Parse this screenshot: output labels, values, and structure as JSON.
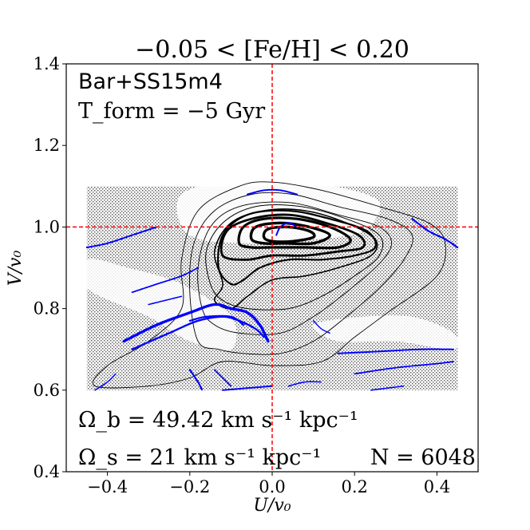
{
  "chart_data": {
    "type": "scatter",
    "title": "−0.05 < [Fe/H] < 0.20",
    "xlabel": "U/v₀",
    "ylabel": "V/v₀",
    "xlim": [
      -0.5,
      0.5
    ],
    "ylim": [
      0.4,
      1.4
    ],
    "xticks": [
      -0.4,
      -0.2,
      0.0,
      0.2,
      0.4
    ],
    "xtick_labels": [
      "−0.4",
      "−0.2",
      "0.0",
      "0.2",
      "0.4"
    ],
    "yticks": [
      0.4,
      0.6,
      0.8,
      1.0,
      1.2,
      1.4
    ],
    "ytick_labels": [
      "0.4",
      "0.6",
      "0.8",
      "1.0",
      "1.2",
      "1.4"
    ],
    "grid": false,
    "reference_lines": {
      "x": 0.0,
      "y": 1.0,
      "color": "#ff0000",
      "style": "dashed"
    },
    "annotations": {
      "model": "Bar+SS15m4",
      "tform": "T_form = −5 Gyr",
      "omega_b": "Ω_b = 49.42 km s⁻¹ kpc⁻¹",
      "omega_s": "Ω_s = 21 km s⁻¹ kpc⁻¹",
      "n": "N = 6048"
    },
    "colors": {
      "contours": "#000000",
      "resonance_stars": "#0000ff",
      "shading": "#333333",
      "reference": "#ff0000"
    },
    "shaded_region": {
      "x_range": [
        -0.45,
        0.45
      ],
      "y_range": [
        0.6,
        1.1
      ]
    },
    "contours": [
      {
        "level": 1,
        "width": 0.9,
        "points": [
          [
            -0.43,
            0.61
          ],
          [
            -0.4,
            0.66
          ],
          [
            -0.3,
            0.72
          ],
          [
            -0.22,
            0.8
          ],
          [
            -0.22,
            0.92
          ],
          [
            -0.18,
            1.04
          ],
          [
            -0.08,
            1.1
          ],
          [
            0.0,
            1.11
          ],
          [
            0.12,
            1.09
          ],
          [
            0.26,
            1.05
          ],
          [
            0.38,
            1.01
          ],
          [
            0.42,
            0.96
          ],
          [
            0.4,
            0.88
          ],
          [
            0.28,
            0.79
          ],
          [
            0.2,
            0.73
          ],
          [
            0.12,
            0.67
          ],
          [
            0.0,
            0.66
          ],
          [
            -0.12,
            0.67
          ],
          [
            -0.2,
            0.63
          ],
          [
            -0.3,
            0.61
          ]
        ]
      },
      {
        "level": 2,
        "width": 0.9,
        "points": [
          [
            -0.18,
            0.72
          ],
          [
            -0.2,
            0.84
          ],
          [
            -0.19,
            0.96
          ],
          [
            -0.14,
            1.04
          ],
          [
            -0.05,
            1.08
          ],
          [
            0.05,
            1.08
          ],
          [
            0.16,
            1.05
          ],
          [
            0.28,
            1.02
          ],
          [
            0.34,
            0.98
          ],
          [
            0.32,
            0.92
          ],
          [
            0.26,
            0.85
          ],
          [
            0.18,
            0.78
          ],
          [
            0.1,
            0.72
          ],
          [
            0.02,
            0.69
          ],
          [
            -0.07,
            0.69
          ],
          [
            -0.13,
            0.7
          ]
        ]
      },
      {
        "level": 3,
        "width": 0.9,
        "points": [
          [
            -0.17,
            0.8
          ],
          [
            -0.18,
            0.9
          ],
          [
            -0.15,
            1.0
          ],
          [
            -0.08,
            1.05
          ],
          [
            0.04,
            1.06
          ],
          [
            0.16,
            1.03
          ],
          [
            0.26,
            1.0
          ],
          [
            0.29,
            0.96
          ],
          [
            0.26,
            0.91
          ],
          [
            0.18,
            0.84
          ],
          [
            0.1,
            0.78
          ],
          [
            0.02,
            0.74
          ],
          [
            -0.08,
            0.74
          ],
          [
            -0.14,
            0.76
          ]
        ]
      },
      {
        "level": 4,
        "width": 1.0,
        "points": [
          [
            -0.15,
            0.86
          ],
          [
            -0.16,
            0.94
          ],
          [
            -0.12,
            1.01
          ],
          [
            -0.04,
            1.05
          ],
          [
            0.07,
            1.05
          ],
          [
            0.18,
            1.02
          ],
          [
            0.26,
            0.98
          ],
          [
            0.26,
            0.93
          ],
          [
            0.2,
            0.88
          ],
          [
            0.12,
            0.83
          ],
          [
            0.04,
            0.8
          ],
          [
            -0.06,
            0.8
          ],
          [
            -0.12,
            0.82
          ]
        ]
      },
      {
        "level": 5,
        "width": 1.6,
        "points": [
          [
            -0.12,
            0.86
          ],
          [
            -0.14,
            0.94
          ],
          [
            -0.1,
            1.01
          ],
          [
            -0.02,
            1.04
          ],
          [
            0.08,
            1.04
          ],
          [
            0.18,
            1.01
          ],
          [
            0.25,
            0.97
          ],
          [
            0.24,
            0.93
          ],
          [
            0.16,
            0.9
          ],
          [
            0.08,
            0.88
          ],
          [
            0.0,
            0.87
          ],
          [
            -0.06,
            0.83
          ],
          [
            -0.1,
            0.8
          ],
          [
            -0.14,
            0.82
          ]
        ]
      },
      {
        "level": 6,
        "width": 2.2,
        "points": [
          [
            -0.13,
            0.9
          ],
          [
            -0.12,
            0.98
          ],
          [
            -0.06,
            1.03
          ],
          [
            0.04,
            1.04
          ],
          [
            0.14,
            1.02
          ],
          [
            0.23,
            0.99
          ],
          [
            0.25,
            0.95
          ],
          [
            0.2,
            0.93
          ],
          [
            0.12,
            0.92
          ],
          [
            0.04,
            0.92
          ],
          [
            -0.03,
            0.9
          ],
          [
            -0.07,
            0.87
          ],
          [
            -0.1,
            0.86
          ]
        ]
      },
      {
        "level": 7,
        "width": 2.8,
        "points": [
          [
            -0.12,
            0.93
          ],
          [
            -0.11,
            0.99
          ],
          [
            -0.05,
            1.02
          ],
          [
            0.04,
            1.03
          ],
          [
            0.13,
            1.01
          ],
          [
            0.21,
            0.98
          ],
          [
            0.22,
            0.95
          ],
          [
            0.16,
            0.94
          ],
          [
            0.08,
            0.93
          ],
          [
            0.0,
            0.93
          ],
          [
            -0.06,
            0.92
          ]
        ]
      },
      {
        "level": 8,
        "width": 3.2,
        "points": [
          [
            -0.08,
            0.96
          ],
          [
            -0.07,
            1.0
          ],
          [
            -0.02,
            1.02
          ],
          [
            0.06,
            1.02
          ],
          [
            0.14,
            1.0
          ],
          [
            0.19,
            0.97
          ],
          [
            0.16,
            0.95
          ],
          [
            0.08,
            0.95
          ],
          [
            0.0,
            0.95
          ],
          [
            -0.05,
            0.95
          ]
        ]
      },
      {
        "level": 9,
        "width": 3.4,
        "points": [
          [
            -0.05,
            0.97
          ],
          [
            -0.04,
            1.0
          ],
          [
            0.02,
            1.01
          ],
          [
            0.09,
            1.0
          ],
          [
            0.14,
            0.98
          ],
          [
            0.1,
            0.96
          ],
          [
            0.03,
            0.96
          ],
          [
            -0.02,
            0.96
          ]
        ]
      },
      {
        "level": 10,
        "width": 3.4,
        "points": [
          [
            -0.02,
            0.975
          ],
          [
            -0.01,
            0.995
          ],
          [
            0.04,
            1.0
          ],
          [
            0.09,
            0.99
          ],
          [
            0.1,
            0.975
          ],
          [
            0.05,
            0.965
          ],
          [
            0.0,
            0.965
          ]
        ]
      }
    ],
    "resonance_streaks": [
      {
        "width": 3.4,
        "points": [
          [
            -0.36,
            0.72
          ],
          [
            -0.28,
            0.76
          ],
          [
            -0.2,
            0.79
          ],
          [
            -0.14,
            0.81
          ],
          [
            -0.1,
            0.8
          ],
          [
            -0.06,
            0.79
          ],
          [
            -0.03,
            0.76
          ],
          [
            -0.01,
            0.72
          ]
        ]
      },
      {
        "width": 2.4,
        "points": [
          [
            -0.34,
            0.7
          ],
          [
            -0.25,
            0.74
          ],
          [
            -0.18,
            0.77
          ],
          [
            -0.12,
            0.78
          ],
          [
            -0.08,
            0.77
          ],
          [
            -0.04,
            0.75
          ],
          [
            -0.02,
            0.73
          ]
        ]
      },
      {
        "width": 2.2,
        "points": [
          [
            -0.2,
            0.77
          ],
          [
            -0.16,
            0.78
          ],
          [
            -0.1,
            0.78
          ],
          [
            -0.07,
            0.76
          ]
        ]
      },
      {
        "width": 2.0,
        "points": [
          [
            -0.45,
            0.95
          ],
          [
            -0.4,
            0.96
          ],
          [
            -0.34,
            0.98
          ],
          [
            -0.28,
            1.0
          ]
        ]
      },
      {
        "width": 2.0,
        "points": [
          [
            -0.06,
            1.08
          ],
          [
            -0.02,
            1.09
          ],
          [
            0.02,
            1.09
          ],
          [
            0.06,
            1.08
          ]
        ]
      },
      {
        "width": 2.0,
        "points": [
          [
            0.01,
            0.98
          ],
          [
            0.02,
            1.0
          ],
          [
            0.04,
            1.01
          ],
          [
            0.06,
            1.0
          ]
        ]
      },
      {
        "width": 2.2,
        "points": [
          [
            0.34,
            1.02
          ],
          [
            0.38,
            0.99
          ],
          [
            0.42,
            0.97
          ],
          [
            0.45,
            0.95
          ]
        ]
      },
      {
        "width": 1.8,
        "points": [
          [
            -0.34,
            0.84
          ],
          [
            -0.28,
            0.86
          ],
          [
            -0.22,
            0.88
          ],
          [
            -0.18,
            0.9
          ]
        ]
      },
      {
        "width": 1.6,
        "points": [
          [
            -0.3,
            0.81
          ],
          [
            -0.26,
            0.82
          ],
          [
            -0.22,
            0.83
          ]
        ]
      },
      {
        "width": 2.0,
        "points": [
          [
            0.16,
            0.69
          ],
          [
            0.26,
            0.695
          ],
          [
            0.36,
            0.7
          ],
          [
            0.44,
            0.7
          ]
        ]
      },
      {
        "width": 1.8,
        "points": [
          [
            0.2,
            0.64
          ],
          [
            0.3,
            0.655
          ],
          [
            0.4,
            0.665
          ],
          [
            0.44,
            0.67
          ]
        ]
      },
      {
        "width": 2.2,
        "points": [
          [
            -0.2,
            0.65
          ],
          [
            -0.18,
            0.62
          ],
          [
            -0.17,
            0.6
          ]
        ]
      },
      {
        "width": 2.0,
        "points": [
          [
            -0.12,
            0.6
          ],
          [
            -0.06,
            0.605
          ],
          [
            0.0,
            0.61
          ]
        ]
      },
      {
        "width": 1.6,
        "points": [
          [
            -0.43,
            0.6
          ],
          [
            -0.4,
            0.62
          ],
          [
            -0.38,
            0.64
          ]
        ]
      },
      {
        "width": 1.6,
        "points": [
          [
            -0.14,
            0.65
          ],
          [
            -0.12,
            0.63
          ],
          [
            -0.1,
            0.61
          ]
        ]
      },
      {
        "width": 1.6,
        "points": [
          [
            0.04,
            0.61
          ],
          [
            0.08,
            0.62
          ],
          [
            0.12,
            0.62
          ]
        ]
      },
      {
        "width": 1.6,
        "points": [
          [
            0.24,
            0.6
          ],
          [
            0.28,
            0.605
          ],
          [
            0.32,
            0.61
          ]
        ]
      },
      {
        "width": 1.4,
        "points": [
          [
            0.1,
            0.77
          ],
          [
            0.12,
            0.75
          ],
          [
            0.14,
            0.74
          ]
        ]
      }
    ]
  }
}
